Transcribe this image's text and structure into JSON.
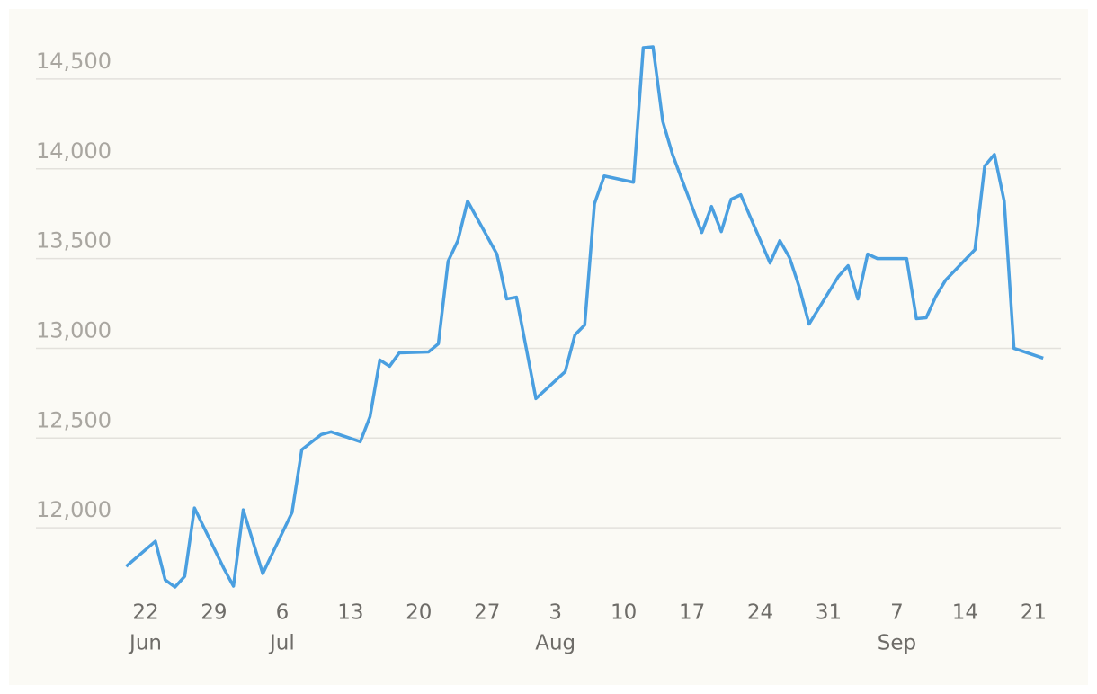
{
  "chart_data": {
    "type": "line",
    "x": [
      "06-20",
      "06-23",
      "06-24",
      "06-25",
      "06-26",
      "06-27",
      "06-30",
      "07-01",
      "07-02",
      "07-04",
      "07-07",
      "07-08",
      "07-10",
      "07-11",
      "07-14",
      "07-15",
      "07-16",
      "07-17",
      "07-18",
      "07-21",
      "07-22",
      "07-23",
      "07-24",
      "07-25",
      "07-28",
      "07-29",
      "07-30",
      "08-01",
      "08-04",
      "08-05",
      "08-06",
      "08-07",
      "08-08",
      "08-11",
      "08-12",
      "08-13",
      "08-14",
      "08-15",
      "08-18",
      "08-19",
      "08-20",
      "08-21",
      "08-22",
      "08-25",
      "08-26",
      "08-27",
      "08-28",
      "08-29",
      "09-01",
      "09-02",
      "09-03",
      "09-04",
      "09-05",
      "09-08",
      "09-09",
      "09-10",
      "09-11",
      "09-12",
      "09-15",
      "09-16",
      "09-17",
      "09-18",
      "09-19",
      "09-22"
    ],
    "series": [
      {
        "color": "#4a9fe0",
        "values": [
          11785,
          11925,
          11710,
          11670,
          11730,
          12110,
          11775,
          11675,
          12100,
          11745,
          12085,
          12435,
          12520,
          12535,
          12480,
          12620,
          12935,
          12900,
          12975,
          12980,
          13025,
          13485,
          13600,
          13820,
          13525,
          13275,
          13285,
          12720,
          12870,
          13075,
          13130,
          13805,
          13960,
          13925,
          14675,
          14680,
          14265,
          14080,
          13645,
          13790,
          13650,
          13830,
          13855,
          13475,
          13600,
          13505,
          13340,
          13135,
          13400,
          13460,
          13275,
          13525,
          13500,
          13500,
          13165,
          13170,
          13290,
          13380,
          13550,
          14015,
          14080,
          13820,
          13000,
          12945
        ]
      }
    ],
    "ylim": [
      11600,
      14700
    ],
    "yticks": [
      {
        "value": 12000,
        "label": "12,000"
      },
      {
        "value": 12500,
        "label": "12,500"
      },
      {
        "value": 13000,
        "label": "13,000"
      },
      {
        "value": 13500,
        "label": "13,500"
      },
      {
        "value": 14000,
        "label": "14,000"
      },
      {
        "value": 14500,
        "label": "14,500"
      }
    ],
    "xticks": [
      {
        "value": "06-22",
        "label": "22"
      },
      {
        "value": "06-29",
        "label": "29"
      },
      {
        "value": "07-06",
        "label": "6"
      },
      {
        "value": "07-13",
        "label": "13"
      },
      {
        "value": "07-20",
        "label": "20"
      },
      {
        "value": "07-27",
        "label": "27"
      },
      {
        "value": "08-03",
        "label": "3"
      },
      {
        "value": "08-10",
        "label": "10"
      },
      {
        "value": "08-17",
        "label": "17"
      },
      {
        "value": "08-24",
        "label": "24"
      },
      {
        "value": "08-31",
        "label": "31"
      },
      {
        "value": "09-07",
        "label": "7"
      },
      {
        "value": "09-14",
        "label": "14"
      },
      {
        "value": "09-21",
        "label": "21"
      }
    ],
    "month_labels": [
      {
        "value": "06-22",
        "label": "Jun"
      },
      {
        "value": "07-06",
        "label": "Jul"
      },
      {
        "value": "08-03",
        "label": "Aug"
      },
      {
        "value": "09-07",
        "label": "Sep"
      }
    ],
    "grid": true
  }
}
